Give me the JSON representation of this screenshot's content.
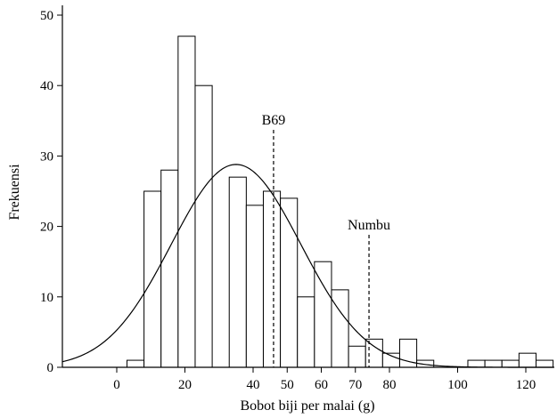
{
  "chart_data": {
    "type": "bar",
    "title": "",
    "xlabel": "Bobot biji per malai (g)",
    "ylabel": "Frekuensi",
    "xlim": [
      -16,
      128
    ],
    "ylim": [
      0,
      51
    ],
    "grid": false,
    "legend": "none",
    "bin_width": 5,
    "x_ticks": [
      0,
      20,
      40,
      50,
      60,
      70,
      80,
      100,
      120
    ],
    "y_ticks": [
      0,
      10,
      20,
      30,
      40,
      50
    ],
    "bins": [
      {
        "start": 3,
        "end": 8,
        "value": 1
      },
      {
        "start": 8,
        "end": 13,
        "value": 25
      },
      {
        "start": 13,
        "end": 18,
        "value": 28
      },
      {
        "start": 18,
        "end": 23,
        "value": 47
      },
      {
        "start": 23,
        "end": 28,
        "value": 40
      },
      {
        "start": 28,
        "end": 33,
        "value": 0
      },
      {
        "start": 33,
        "end": 38,
        "value": 27
      },
      {
        "start": 38,
        "end": 43,
        "value": 23
      },
      {
        "start": 43,
        "end": 48,
        "value": 25
      },
      {
        "start": 48,
        "end": 53,
        "value": 24
      },
      {
        "start": 53,
        "end": 58,
        "value": 10
      },
      {
        "start": 58,
        "end": 63,
        "value": 15
      },
      {
        "start": 63,
        "end": 68,
        "value": 11
      },
      {
        "start": 68,
        "end": 73,
        "value": 3
      },
      {
        "start": 73,
        "end": 78,
        "value": 4
      },
      {
        "start": 78,
        "end": 83,
        "value": 2
      },
      {
        "start": 83,
        "end": 88,
        "value": 4
      },
      {
        "start": 88,
        "end": 93,
        "value": 1
      },
      {
        "start": 93,
        "end": 98,
        "value": 0
      },
      {
        "start": 98,
        "end": 103,
        "value": 0
      },
      {
        "start": 103,
        "end": 108,
        "value": 1
      },
      {
        "start": 108,
        "end": 113,
        "value": 1
      },
      {
        "start": 113,
        "end": 118,
        "value": 1
      },
      {
        "start": 118,
        "end": 123,
        "value": 2
      },
      {
        "start": 123,
        "end": 128,
        "value": 1
      }
    ],
    "normal_curve": {
      "mean": 35,
      "sd": 19,
      "peak": 28.8
    },
    "reference_lines": [
      {
        "label": "B69",
        "x": 46
      },
      {
        "label": "Numbu",
        "x": 74
      }
    ]
  }
}
